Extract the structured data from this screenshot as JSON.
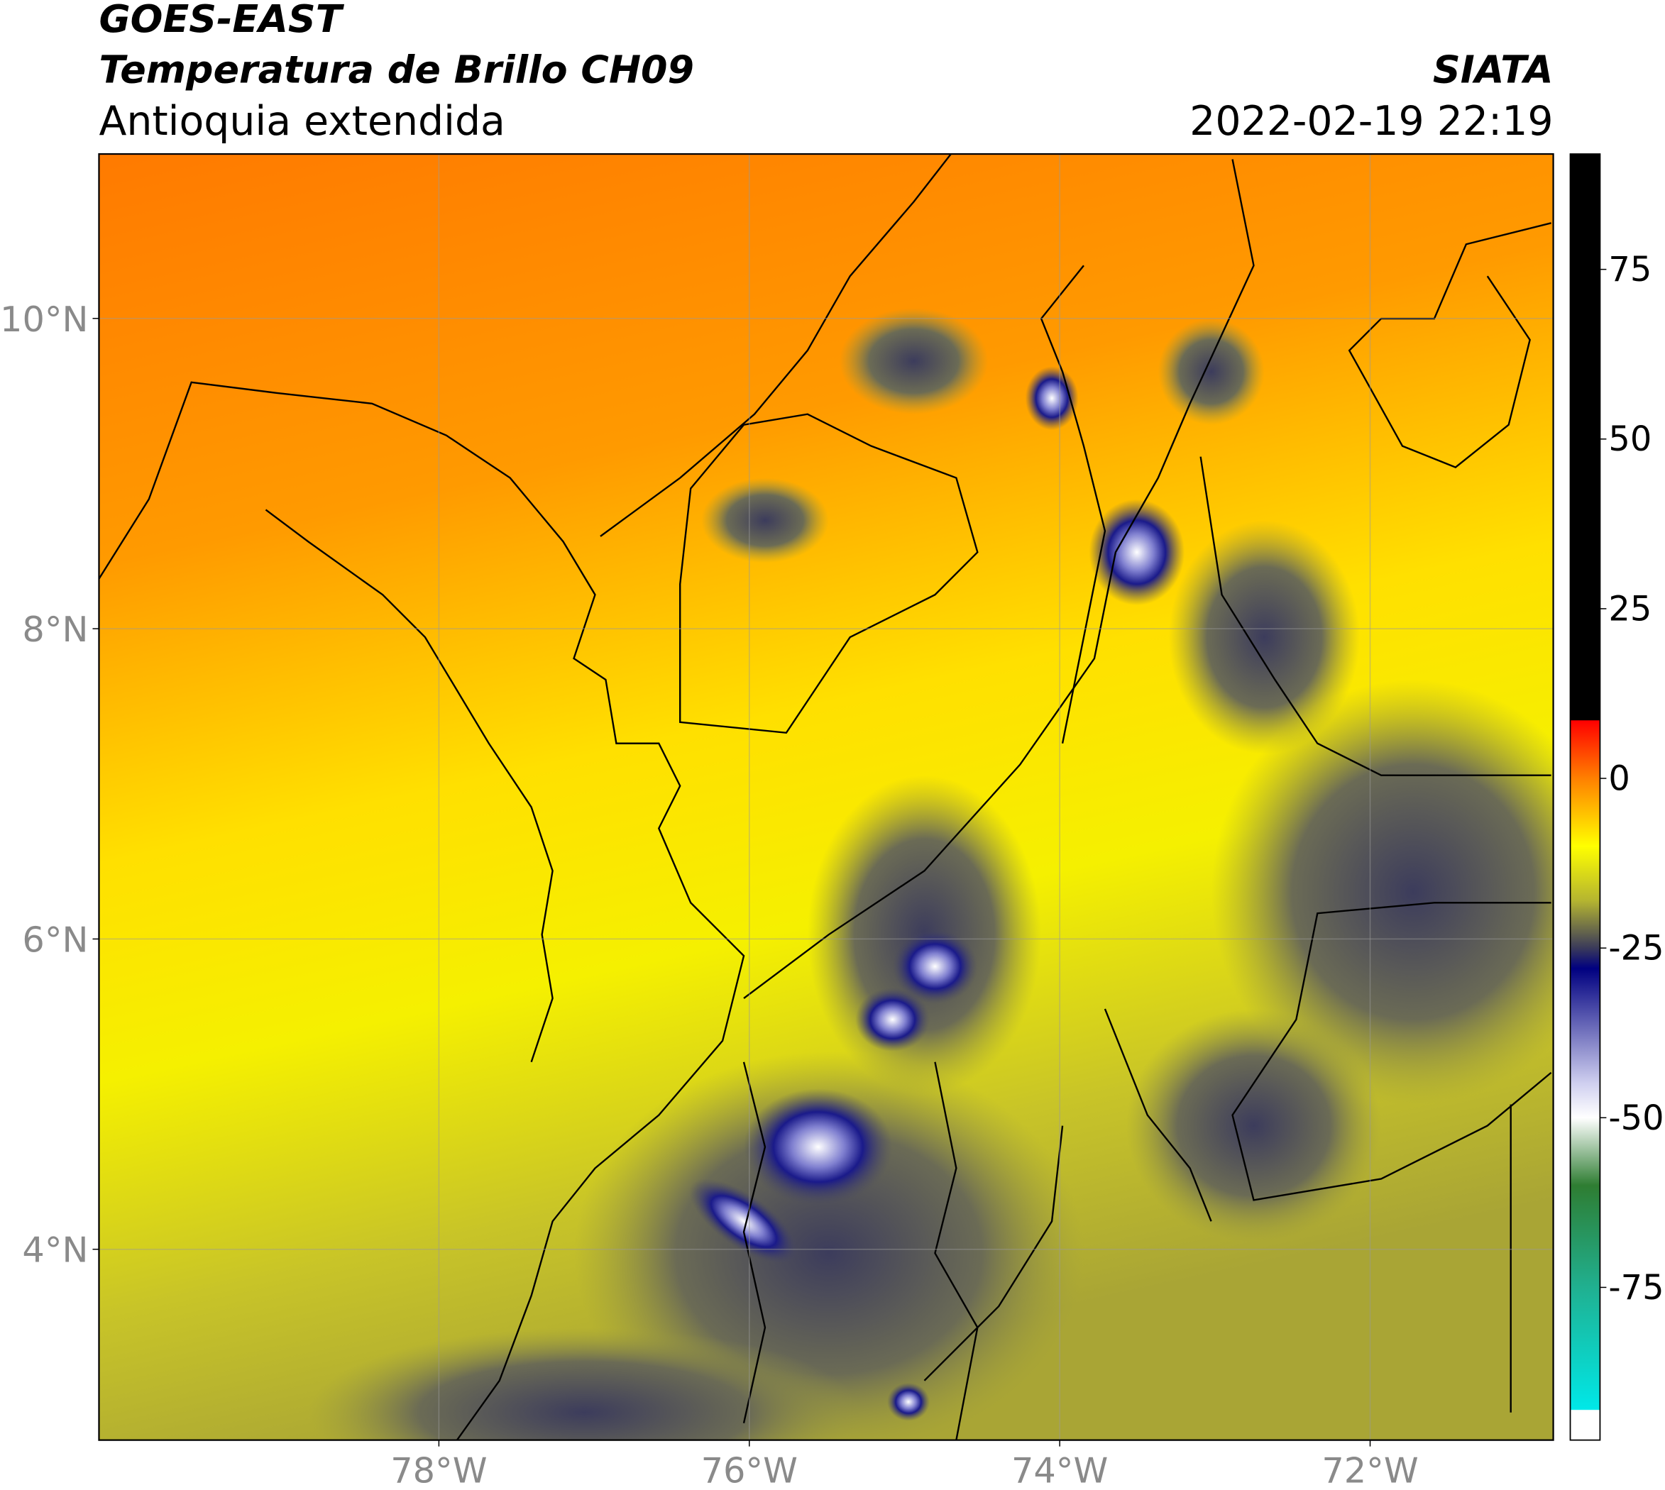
{
  "header": {
    "line1": "GOES-EAST",
    "line2": "Temperatura de Brillo CH09",
    "line3": "Antioquia extendida",
    "source": "SIATA",
    "timestamp": "2022-02-19 22:19"
  },
  "map": {
    "xlim": [
      -80.19,
      -70.82
    ],
    "ylim": [
      2.77,
      11.06
    ],
    "xticks": [
      {
        "value": -78,
        "label": "78°W"
      },
      {
        "value": -76,
        "label": "76°W"
      },
      {
        "value": -74,
        "label": "74°W"
      },
      {
        "value": -72,
        "label": "72°W"
      }
    ],
    "yticks": [
      {
        "value": 10,
        "label": "10°N"
      },
      {
        "value": 8,
        "label": "8°N"
      },
      {
        "value": 6,
        "label": "6°N"
      },
      {
        "value": 4,
        "label": "4°N"
      }
    ],
    "grid": true
  },
  "colorbar": {
    "lim": [
      -97.5,
      92
    ],
    "ticks": [
      75,
      50,
      25,
      0,
      -25,
      -50,
      -75
    ],
    "stops": [
      {
        "value": 92,
        "color": "#000000"
      },
      {
        "value": 8.6,
        "color": "#000000"
      },
      {
        "value": 8.5,
        "color": "#ff0000"
      },
      {
        "value": 0,
        "color": "#ff8000"
      },
      {
        "value": -10,
        "color": "#ffff00"
      },
      {
        "value": -18,
        "color": "#b5b530"
      },
      {
        "value": -25,
        "color": "#3a3a5a"
      },
      {
        "value": -28,
        "color": "#000080"
      },
      {
        "value": -45,
        "color": "#d0d0f0"
      },
      {
        "value": -50,
        "color": "#ffffff"
      },
      {
        "value": -60,
        "color": "#2e7d32"
      },
      {
        "value": -75,
        "color": "#20b090"
      },
      {
        "value": -93,
        "color": "#00e8e8"
      },
      {
        "value": -93.1,
        "color": "#ffffff"
      },
      {
        "value": -97.5,
        "color": "#ffffff"
      }
    ]
  }
}
